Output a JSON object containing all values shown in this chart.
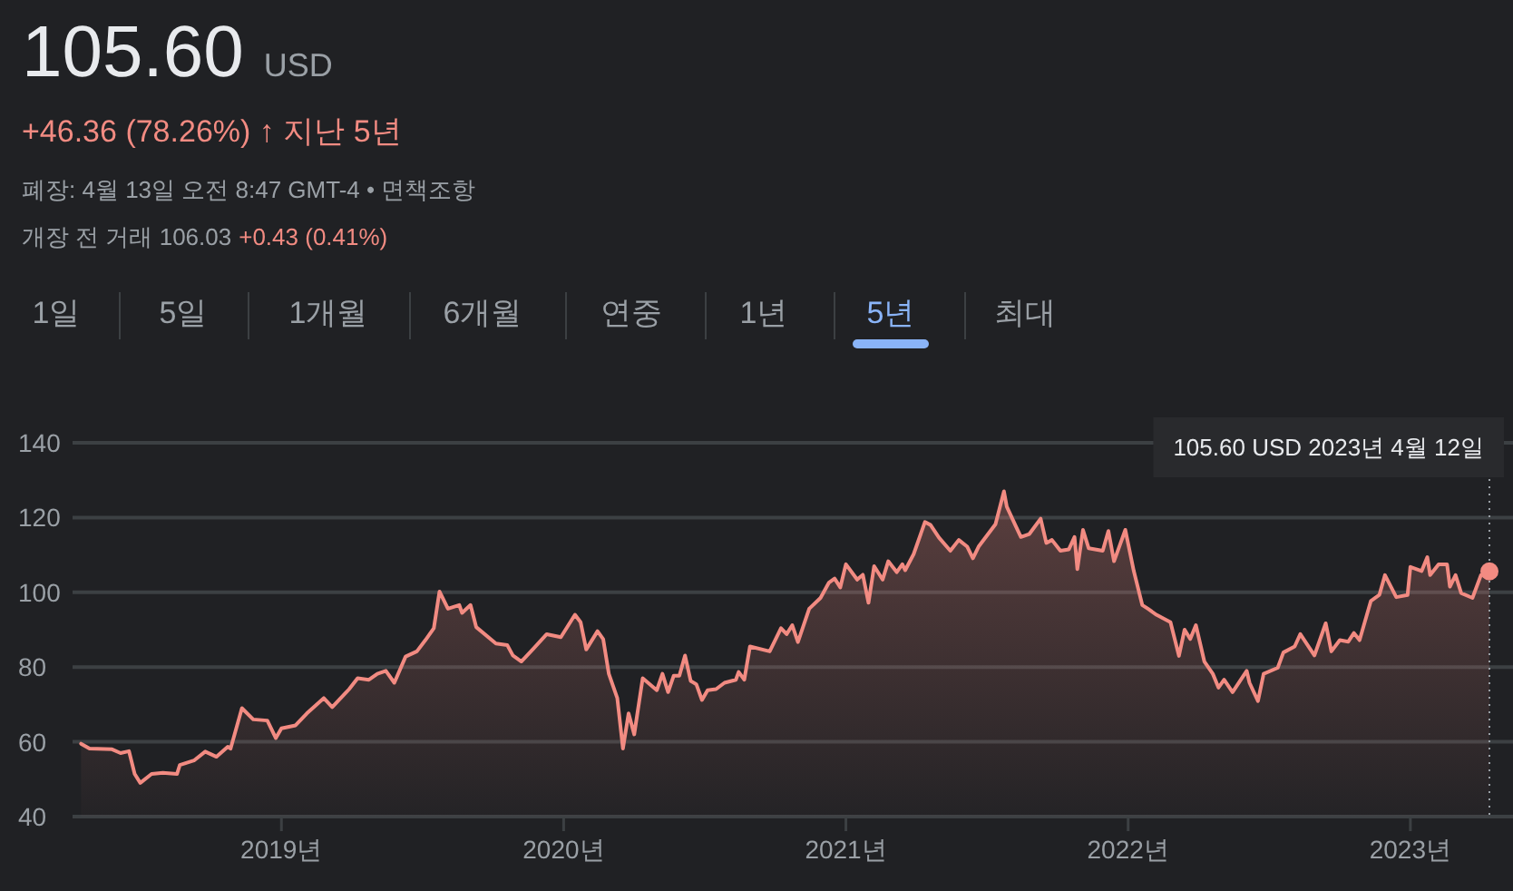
{
  "chart_data": {
    "type": "area",
    "title": "105.60",
    "subtitle": "USD",
    "annotations": [
      "+46.36 (78.26%) ↑ 지난 5년",
      "폐장: 4월 13일 오전 8:47 GMT-4 • 면책조항",
      "개장 전 거래 106.03",
      "+0.43 (0.41%)",
      "1일",
      "5일",
      "1개월",
      "6개월",
      "연중",
      "1년",
      "5년",
      "최대",
      "105.60 USD  2023년 4월 12일"
    ],
    "x": [
      2018.29,
      2018.32,
      2018.4,
      2018.43,
      2018.46,
      2018.48,
      2018.5,
      2018.54,
      2018.58,
      2018.63,
      2018.64,
      2018.69,
      2018.73,
      2018.77,
      2018.81,
      2018.82,
      2018.86,
      2018.9,
      2018.95,
      2018.98,
      2019.0,
      2019.05,
      2019.09,
      2019.15,
      2019.18,
      2019.24,
      2019.27,
      2019.31,
      2019.34,
      2019.37,
      2019.4,
      2019.44,
      2019.48,
      2019.51,
      2019.54,
      2019.56,
      2019.59,
      2019.63,
      2019.64,
      2019.67,
      2019.69,
      2019.76,
      2019.8,
      2019.82,
      2019.85,
      2019.89,
      2019.94,
      2019.99,
      2020.04,
      2020.06,
      2020.08,
      2020.12,
      2020.14,
      2020.16,
      2020.19,
      2020.21,
      2020.23,
      2020.25,
      2020.28,
      2020.33,
      2020.35,
      2020.37,
      2020.39,
      2020.41,
      2020.43,
      2020.45,
      2020.47,
      2020.49,
      2020.51,
      2020.54,
      2020.57,
      2020.61,
      2020.62,
      2020.64,
      2020.66,
      2020.73,
      2020.77,
      2020.79,
      2020.81,
      2020.83,
      2020.87,
      2020.91,
      2020.94,
      2020.96,
      2020.98,
      2021.0,
      2021.04,
      2021.06,
      2021.08,
      2021.1,
      2021.13,
      2021.15,
      2021.18,
      2021.2,
      2021.21,
      2021.24,
      2021.28,
      2021.3,
      2021.33,
      2021.37,
      2021.4,
      2021.43,
      2021.45,
      2021.47,
      2021.53,
      2021.56,
      2021.57,
      2021.6,
      2021.62,
      2021.65,
      2021.69,
      2021.71,
      2021.73,
      2021.76,
      2021.79,
      2021.81,
      2021.82,
      2021.84,
      2021.86,
      2021.91,
      2021.93,
      2021.95,
      2021.99,
      2022.02,
      2022.05,
      2022.07,
      2022.1,
      2022.15,
      2022.18,
      2022.2,
      2022.22,
      2022.24,
      2022.27,
      2022.3,
      2022.32,
      2022.34,
      2022.37,
      2022.42,
      2022.43,
      2022.46,
      2022.48,
      2022.53,
      2022.55,
      2022.59,
      2022.61,
      2022.66,
      2022.7,
      2022.72,
      2022.75,
      2022.78,
      2022.8,
      2022.82,
      2022.86,
      2022.89,
      2022.91,
      2022.95,
      2022.99,
      2023.0,
      2023.04,
      2023.06,
      2023.07,
      2023.1,
      2023.13,
      2023.14,
      2023.16,
      2023.18,
      2023.22,
      2023.25,
      2023.28
    ],
    "series": [
      {
        "color": "#f28b82",
        "values": [
          59.5,
          58.2,
          58,
          57,
          57.5,
          51.4,
          49,
          51.4,
          51.7,
          51.4,
          53.8,
          55,
          57.4,
          56,
          58.7,
          58.2,
          69,
          66,
          65.7,
          61,
          63.6,
          64.4,
          67.6,
          71.7,
          69.3,
          74.1,
          77,
          76.6,
          78.2,
          79,
          75.8,
          82.8,
          84.2,
          87.2,
          90.4,
          100.2,
          95.6,
          96.6,
          94.5,
          96.6,
          90.7,
          86.3,
          85.9,
          83.1,
          81.5,
          84.7,
          88.8,
          88,
          94,
          92,
          84.7,
          89.6,
          87.5,
          78.2,
          71.7,
          58.2,
          67.6,
          62,
          77,
          73.8,
          78.2,
          73.3,
          77.7,
          77.7,
          83.1,
          76.3,
          75.4,
          71.2,
          73.8,
          74.1,
          75.8,
          76.6,
          78.7,
          76.6,
          85.5,
          84.2,
          90.4,
          88.8,
          91.2,
          86.7,
          95.6,
          98.5,
          102.6,
          103.7,
          101.3,
          107.5,
          103.4,
          104.7,
          97.2,
          107,
          103.4,
          108.3,
          105.4,
          107.5,
          105.9,
          110.2,
          118.8,
          118,
          114.6,
          111.1,
          114,
          112.2,
          109.1,
          112.2,
          118.2,
          127,
          122.9,
          118,
          114.8,
          115.6,
          119.7,
          113.2,
          114,
          111.1,
          111.5,
          114.8,
          106.2,
          116.7,
          111.8,
          111.1,
          116.4,
          108.3,
          116.7,
          105.7,
          96.6,
          95.6,
          94,
          92,
          83,
          90,
          87.5,
          91.2,
          81.5,
          78.2,
          74.5,
          76.6,
          73.3,
          79,
          75.8,
          70.9,
          78.2,
          79.8,
          83.9,
          85.5,
          88.8,
          83.1,
          91.7,
          84.2,
          87.2,
          86.8,
          89.1,
          87.2,
          97.7,
          99.3,
          104.6,
          98.7,
          99.3,
          106.8,
          105.7,
          109.4,
          104.6,
          107.5,
          107.5,
          101.5,
          104.6,
          99.8,
          98.5,
          104.6,
          105.6
        ]
      }
    ],
    "xlim": [
      2018.26,
      2023.37
    ],
    "ylim": [
      40,
      140
    ],
    "xticks": [
      {
        "value": 2019,
        "label": "2019년"
      },
      {
        "value": 2020,
        "label": "2020년"
      },
      {
        "value": 2021,
        "label": "2021년"
      },
      {
        "value": 2022,
        "label": "2022년"
      },
      {
        "value": 2023,
        "label": "2023년"
      }
    ],
    "yticks": [
      40,
      60,
      80,
      100,
      120,
      140
    ],
    "ref_lines": [
      {
        "axis": "x",
        "value": 2023.28,
        "color": "#9aa0a6",
        "line_style": "dotted"
      }
    ],
    "grid": "y"
  }
}
